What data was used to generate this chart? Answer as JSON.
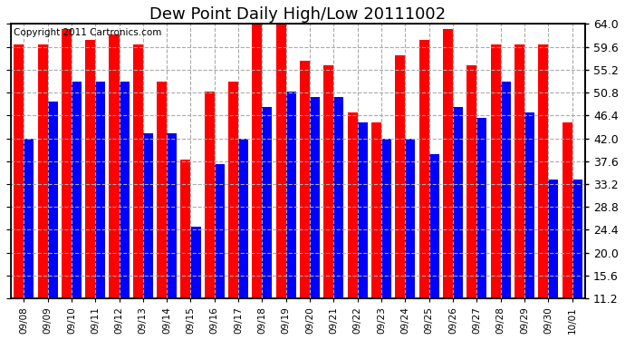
{
  "title": "Dew Point Daily High/Low 20111002",
  "copyright": "Copyright 2011 Cartronics.com",
  "dates": [
    "09/08",
    "09/09",
    "09/10",
    "09/11",
    "09/12",
    "09/13",
    "09/14",
    "09/15",
    "09/16",
    "09/17",
    "09/18",
    "09/19",
    "09/20",
    "09/21",
    "09/22",
    "09/23",
    "09/24",
    "09/25",
    "09/26",
    "09/27",
    "09/28",
    "09/29",
    "09/30",
    "10/01"
  ],
  "highs": [
    60,
    60,
    63,
    61,
    62,
    60,
    53,
    38,
    51,
    53,
    64,
    64,
    57,
    56,
    47,
    45,
    58,
    61,
    63,
    56,
    60,
    60,
    60,
    45
  ],
  "lows": [
    42,
    49,
    53,
    53,
    53,
    43,
    43,
    25,
    37,
    42,
    48,
    51,
    50,
    50,
    45,
    42,
    42,
    39,
    48,
    46,
    53,
    47,
    34,
    34
  ],
  "high_color": "#ff0000",
  "low_color": "#0000ff",
  "bg_color": "#ffffff",
  "grid_color": "#aaaaaa",
  "ymin": 11.2,
  "ymax": 64.0,
  "yticks": [
    11.2,
    15.6,
    20.0,
    24.4,
    28.8,
    33.2,
    37.6,
    42.0,
    46.4,
    50.8,
    55.2,
    59.6,
    64.0
  ],
  "title_fontsize": 13,
  "copyright_fontsize": 7.5,
  "bar_width": 0.42
}
